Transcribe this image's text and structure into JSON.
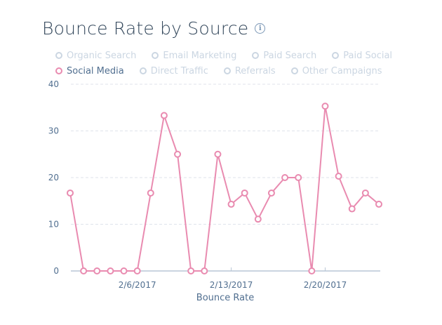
{
  "title": "Bounce Rate by Source",
  "info_icon": "info-icon",
  "legend": [
    [
      "Organic Search",
      "Email Marketing",
      "Paid Search",
      "Paid Social"
    ],
    [
      "Social Media",
      "Direct Traffic",
      "Referrals",
      "Other Campaigns"
    ]
  ],
  "active_series": "Social Media",
  "colors": {
    "series": "#e98bb0",
    "inactive": "#cbd6e2",
    "text": "#33475b",
    "axis": "#516f90"
  },
  "chart_data": {
    "type": "line",
    "title": "Bounce Rate by Source",
    "xlabel": "Bounce Rate",
    "ylabel": "",
    "ylim": [
      0,
      40
    ],
    "yticks": [
      0,
      10,
      20,
      30,
      40
    ],
    "xticks": [
      "2/6/2017",
      "2/13/2017",
      "2/20/2017"
    ],
    "grid": true,
    "legend_placement": "top",
    "x": [
      "2/1/2017",
      "2/2/2017",
      "2/3/2017",
      "2/4/2017",
      "2/5/2017",
      "2/6/2017",
      "2/7/2017",
      "2/8/2017",
      "2/9/2017",
      "2/10/2017",
      "2/11/2017",
      "2/12/2017",
      "2/13/2017",
      "2/14/2017",
      "2/15/2017",
      "2/16/2017",
      "2/17/2017",
      "2/18/2017",
      "2/19/2017",
      "2/20/2017",
      "2/21/2017",
      "2/22/2017",
      "2/23/2017",
      "2/24/2017"
    ],
    "series": [
      {
        "name": "Social Media",
        "values": [
          16.7,
          0,
          0,
          0,
          0,
          0,
          16.7,
          33.3,
          25,
          0,
          0,
          25,
          14.3,
          16.7,
          11.1,
          16.7,
          20,
          20,
          0,
          35.3,
          20.3,
          13.3,
          16.7,
          14.3
        ]
      }
    ]
  }
}
